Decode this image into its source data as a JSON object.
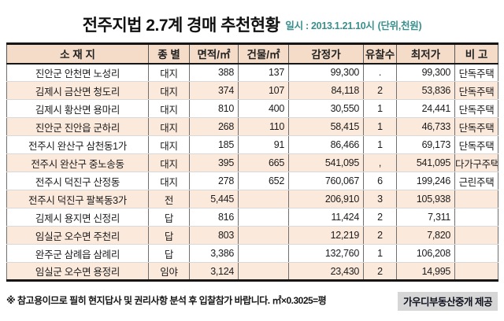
{
  "page": {
    "title": "전주지법 2.7계 경매 추천현황",
    "datetime_label": "일시 : 2013.1.21.10시",
    "unit_label": "(단위,천원)"
  },
  "table": {
    "columns": [
      "소 재 지",
      "종 별",
      "면적/㎡",
      "건물/㎡",
      "감정가",
      "유찰수",
      "최저가",
      "비 고"
    ],
    "column_keys": [
      "location",
      "category",
      "land-area",
      "building-area",
      "appraisal-price",
      "failed-bids",
      "minimum-price",
      "note"
    ],
    "rows": [
      [
        "진안군 안천면 노성리",
        "대지",
        "388",
        "137",
        "99,300",
        ".",
        "99,300",
        "단독주택"
      ],
      [
        "김제시 금산면 청도리",
        "대지",
        "374",
        "107",
        "84,118",
        "2",
        "53,836",
        "단독주택"
      ],
      [
        "김제시 황산면 용마리",
        "대지",
        "810",
        "400",
        "30,550",
        "1",
        "24,441",
        "단독주택"
      ],
      [
        "진안군 진안읍 군하리",
        "대지",
        "268",
        "110",
        "58,415",
        "1",
        "46,733",
        "단독주택"
      ],
      [
        "전주시 완산구 삼천동1가",
        "대지",
        "185",
        "91",
        "86,466",
        "1",
        "69,173",
        "단독주택"
      ],
      [
        "전주시 완산구 중노송동",
        "대지",
        "395",
        "665",
        "541,095",
        ",",
        "541,095",
        "다가구주택"
      ],
      [
        "전주시 덕진구 산정동",
        "대지",
        "278",
        "652",
        "760,067",
        "6",
        "199,246",
        "근린주택"
      ],
      [
        "전주시 덕진구 팔복동3가",
        "전",
        "5,445",
        "",
        "206,910",
        "3",
        "105,938",
        ""
      ],
      [
        "김제시 용지면 신정리",
        "답",
        "816",
        "",
        "11,424",
        "2",
        "7,311",
        ""
      ],
      [
        "임실군 오수면 주천리",
        "답",
        "803",
        "",
        "12,219",
        "2",
        "7,820",
        ""
      ],
      [
        "완주군 삼례읍 삼례리",
        "답",
        "3,386",
        "",
        "132,760",
        "1",
        "106,208",
        ""
      ],
      [
        "임실군 오수면 용정리",
        "임야",
        "3,124",
        "",
        "23,430",
        "2",
        "14,995",
        ""
      ]
    ]
  },
  "footer": {
    "note": "※ 참고용이므로 필히 현지답사 및 권리사항 분석 후 입찰참가 바랍니다. ㎡×0.3025=평",
    "provider": "가우디부동산중개 제공"
  },
  "colors": {
    "accent_teal": "#3a8f8d",
    "header_bg": "#f4dcc8",
    "alt_row_bg": "#fbe9dc",
    "provider_bg": "#d6d6d6"
  }
}
